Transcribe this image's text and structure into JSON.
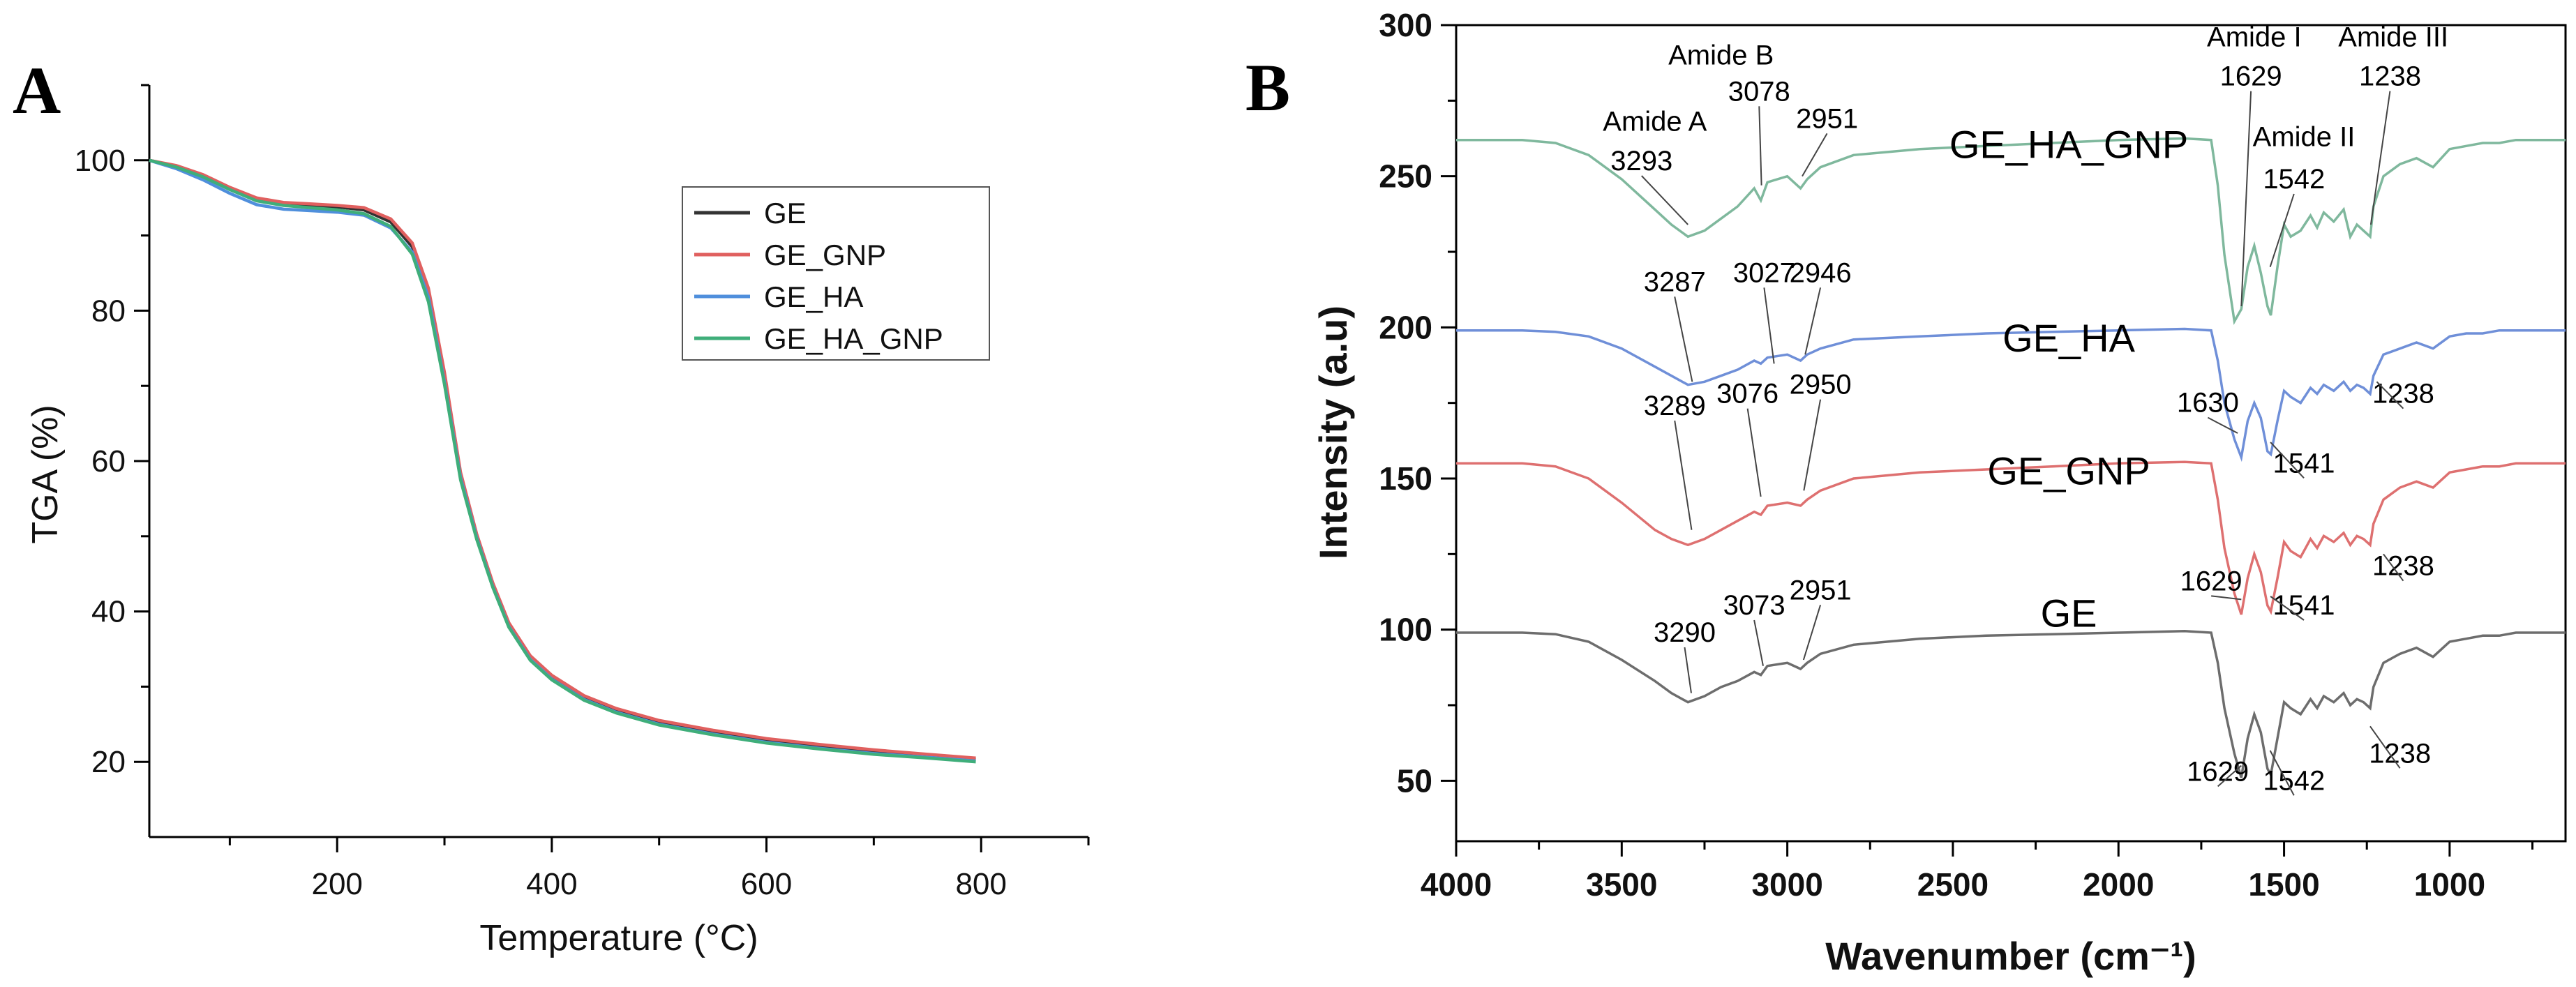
{
  "panel_labels": {
    "a": "A",
    "b": "B"
  },
  "chart_data": [
    {
      "type": "line",
      "panel": "A",
      "title": "",
      "xlabel": "Temperature (°C)",
      "ylabel": "TGA (%)",
      "xlim": [
        25,
        900
      ],
      "ylim": [
        10,
        110
      ],
      "xticks": [
        200,
        400,
        600,
        800
      ],
      "yticks": [
        20,
        40,
        60,
        80,
        100
      ],
      "grid": false,
      "legend_position": "top-right",
      "x": [
        25,
        50,
        75,
        100,
        125,
        150,
        175,
        200,
        225,
        250,
        270,
        285,
        300,
        315,
        330,
        345,
        360,
        380,
        400,
        430,
        460,
        500,
        550,
        600,
        650,
        700,
        750,
        795
      ],
      "series": [
        {
          "name": "GE",
          "color": "#333333",
          "values": [
            100,
            99.2,
            98,
            96.3,
            94.8,
            94.2,
            94,
            93.8,
            93.4,
            91.8,
            88.5,
            82.5,
            71,
            58,
            50,
            43.5,
            38.2,
            33.8,
            31.2,
            28.5,
            26.8,
            25.2,
            23.9,
            22.8,
            22,
            21.3,
            20.8,
            20.3
          ]
        },
        {
          "name": "GE_GNP",
          "color": "#e0605f",
          "values": [
            100,
            99.3,
            98.1,
            96.4,
            95,
            94.4,
            94.2,
            94,
            93.7,
            92.2,
            89,
            83,
            71.8,
            58.5,
            50.3,
            43.8,
            38.5,
            34.1,
            31.5,
            28.8,
            27.1,
            25.5,
            24.2,
            23.1,
            22.3,
            21.6,
            21,
            20.5
          ]
        },
        {
          "name": "GE_HA",
          "color": "#4f8fdc",
          "values": [
            100,
            98.9,
            97.4,
            95.6,
            94.1,
            93.5,
            93.3,
            93.1,
            92.7,
            91,
            87.8,
            81.8,
            70.5,
            57.8,
            49.8,
            43.3,
            38,
            33.6,
            31,
            28.3,
            26.6,
            25,
            23.7,
            22.6,
            21.8,
            21.1,
            20.6,
            20.1
          ]
        },
        {
          "name": "GE_HA_GNP",
          "color": "#3fae7a",
          "values": [
            100,
            99.1,
            97.8,
            96.1,
            94.6,
            94,
            93.7,
            93.4,
            92.9,
            91.2,
            87.5,
            81.2,
            70.2,
            57.5,
            49.6,
            43.2,
            37.9,
            33.5,
            30.9,
            28.2,
            26.5,
            24.9,
            23.6,
            22.5,
            21.7,
            21,
            20.5,
            20
          ]
        }
      ]
    },
    {
      "type": "line",
      "panel": "B",
      "title": "",
      "xlabel": "Wavenumber (cm⁻¹)",
      "ylabel": "Intensity (a.u)",
      "xlim": [
        4000,
        650
      ],
      "ylim": [
        30,
        300
      ],
      "xticks": [
        4000,
        3500,
        3000,
        2500,
        2000,
        1500,
        1000
      ],
      "yticks": [
        50,
        100,
        150,
        200,
        250,
        300
      ],
      "grid": false,
      "x": [
        4000,
        3800,
        3700,
        3600,
        3500,
        3400,
        3350,
        3300,
        3250,
        3200,
        3150,
        3100,
        3080,
        3060,
        3000,
        2960,
        2940,
        2900,
        2800,
        2600,
        2400,
        2200,
        2000,
        1800,
        1720,
        1700,
        1680,
        1650,
        1629,
        1610,
        1590,
        1570,
        1550,
        1540,
        1520,
        1500,
        1480,
        1450,
        1420,
        1400,
        1380,
        1350,
        1320,
        1300,
        1280,
        1260,
        1240,
        1230,
        1200,
        1150,
        1100,
        1050,
        1000,
        950,
        900,
        850,
        800,
        750,
        700,
        650
      ],
      "offsets": [
        99,
        155,
        199,
        262
      ],
      "series": [
        {
          "name": "GE",
          "label": "GE",
          "color": "#6d6d6d",
          "offset": 99,
          "values": [
            0,
            0,
            -0.5,
            -3,
            -9,
            -16,
            -20,
            -23,
            -21,
            -18,
            -16,
            -13,
            -14,
            -11,
            -10,
            -12,
            -10,
            -7,
            -4,
            -2,
            -1,
            -0.5,
            0,
            0.5,
            0,
            -10,
            -25,
            -40,
            -48,
            -35,
            -27,
            -33,
            -45,
            -47,
            -35,
            -23,
            -25,
            -27,
            -22,
            -25,
            -21,
            -23,
            -20,
            -24,
            -22,
            -23,
            -25,
            -18,
            -10,
            -7,
            -5,
            -8,
            -3,
            -2,
            -1,
            -1,
            0,
            0,
            0,
            0
          ]
        },
        {
          "name": "GE_GNP",
          "label": "GE_GNP",
          "color": "#de7070",
          "offset": 155,
          "values": [
            0,
            0,
            -1,
            -5,
            -13,
            -22,
            -25,
            -27,
            -25,
            -22,
            -19,
            -16,
            -17,
            -14,
            -13,
            -14,
            -12,
            -9,
            -5,
            -3,
            -2,
            -1,
            0,
            0.5,
            0,
            -12,
            -28,
            -43,
            -50,
            -38,
            -30,
            -36,
            -47,
            -49,
            -38,
            -26,
            -29,
            -31,
            -25,
            -28,
            -24,
            -26,
            -23,
            -27,
            -24,
            -25,
            -27,
            -20,
            -12,
            -8,
            -6,
            -8,
            -3,
            -2,
            -1,
            -1,
            0,
            0,
            0,
            0
          ]
        },
        {
          "name": "GE_HA",
          "label": "GE_HA",
          "color": "#6f8fd8",
          "offset": 199,
          "values": [
            0,
            0,
            -0.5,
            -2,
            -6,
            -12,
            -15,
            -18,
            -17,
            -15,
            -13,
            -10,
            -11,
            -9,
            -8,
            -10,
            -8,
            -6,
            -3,
            -2,
            -1,
            -0.5,
            0,
            0.5,
            0,
            -10,
            -24,
            -36,
            -42,
            -30,
            -24,
            -29,
            -40,
            -41,
            -30,
            -20,
            -22,
            -24,
            -19,
            -21,
            -18,
            -20,
            -17,
            -20,
            -18,
            -19,
            -21,
            -15,
            -8,
            -6,
            -4,
            -6,
            -2,
            -1,
            -1,
            0,
            0,
            0,
            0,
            0
          ]
        },
        {
          "name": "GE_HA_GNP",
          "label": "GE_HA_GNP",
          "color": "#7fb89d",
          "offset": 262,
          "values": [
            0,
            0,
            -1,
            -5,
            -13,
            -23,
            -28,
            -32,
            -30,
            -26,
            -22,
            -16,
            -20,
            -14,
            -12,
            -16,
            -13,
            -9,
            -5,
            -3,
            -2,
            -1,
            0,
            0.5,
            0,
            -15,
            -38,
            -60,
            -56,
            -42,
            -35,
            -44,
            -55,
            -58,
            -42,
            -28,
            -32,
            -30,
            -25,
            -29,
            -24,
            -27,
            -23,
            -32,
            -28,
            -30,
            -32,
            -22,
            -12,
            -8,
            -6,
            -9,
            -3,
            -2,
            -1,
            -1,
            0,
            0,
            0,
            0
          ]
        }
      ],
      "annotations": [
        {
          "text": "Amide A",
          "series": "GE_HA_GNP"
        },
        {
          "text": "3293",
          "series": "GE_HA_GNP"
        },
        {
          "text": "Amide B",
          "series": "GE_HA_GNP"
        },
        {
          "text": "3078",
          "series": "GE_HA_GNP"
        },
        {
          "text": "2951",
          "series": "GE_HA_GNP"
        },
        {
          "text": "Amide I",
          "series": "GE_HA_GNP"
        },
        {
          "text": "1629",
          "series": "GE_HA_GNP"
        },
        {
          "text": "Amide II",
          "series": "GE_HA_GNP"
        },
        {
          "text": "1542",
          "series": "GE_HA_GNP"
        },
        {
          "text": "Amide III",
          "series": "GE_HA_GNP"
        },
        {
          "text": "1238",
          "series": "GE_HA_GNP"
        },
        {
          "text": "3287",
          "series": "GE_HA"
        },
        {
          "text": "3027",
          "series": "GE_HA"
        },
        {
          "text": "2946",
          "series": "GE_HA"
        },
        {
          "text": "1630",
          "series": "GE_HA"
        },
        {
          "text": "1541",
          "series": "GE_HA"
        },
        {
          "text": "1238",
          "series": "GE_HA"
        },
        {
          "text": "3289",
          "series": "GE_GNP"
        },
        {
          "text": "3076",
          "series": "GE_GNP"
        },
        {
          "text": "2950",
          "series": "GE_GNP"
        },
        {
          "text": "1629",
          "series": "GE_GNP"
        },
        {
          "text": "1541",
          "series": "GE_GNP"
        },
        {
          "text": "1238",
          "series": "GE_GNP"
        },
        {
          "text": "3290",
          "series": "GE"
        },
        {
          "text": "3073",
          "series": "GE"
        },
        {
          "text": "2951",
          "series": "GE"
        },
        {
          "text": "1629",
          "series": "GE"
        },
        {
          "text": "1542",
          "series": "GE"
        },
        {
          "text": "1238",
          "series": "GE"
        }
      ]
    }
  ]
}
